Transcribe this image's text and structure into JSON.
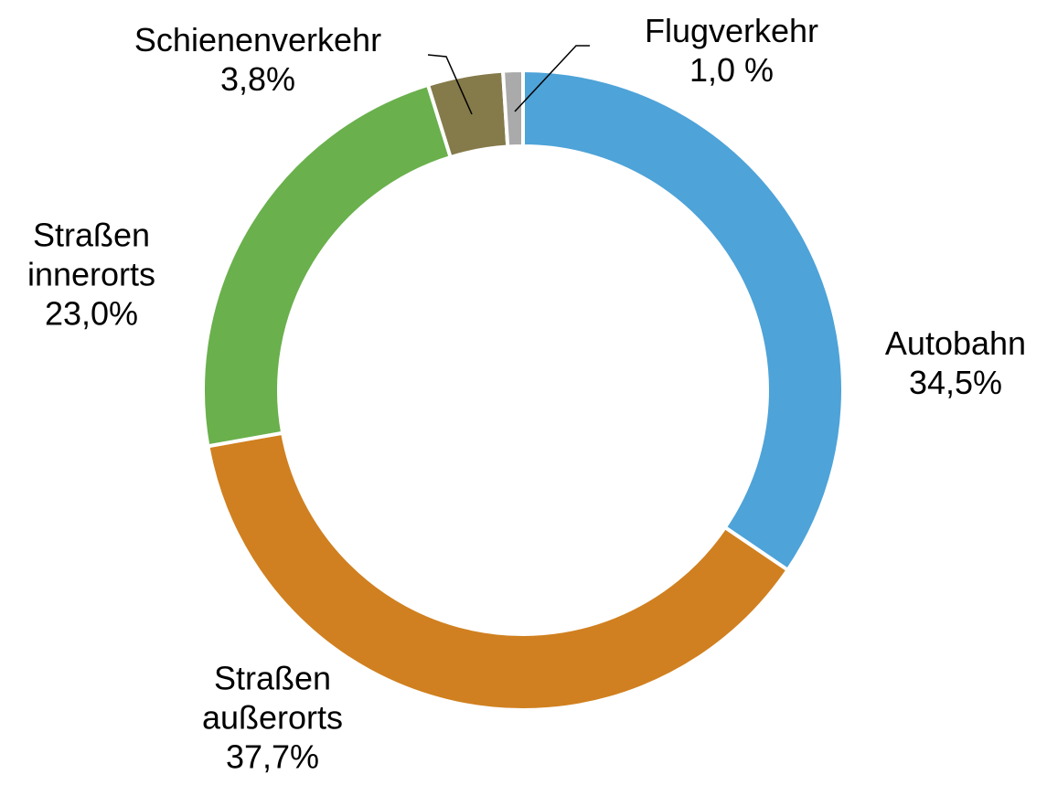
{
  "chart_data": {
    "type": "donut",
    "categories": [
      "Autobahn",
      "Straßen außerorts",
      "Straßen innerorts",
      "Schienenverkehr",
      "Flugverkehr"
    ],
    "values": [
      34.5,
      37.7,
      23.0,
      3.8,
      1.0
    ],
    "value_labels": [
      "34,5%",
      "37,7%",
      "23,0%",
      "3,8%",
      "1,0 %"
    ],
    "colors": [
      "#4ea3d8",
      "#d08020",
      "#6ab04c",
      "#857a4a",
      "#aaaaaa"
    ]
  }
}
